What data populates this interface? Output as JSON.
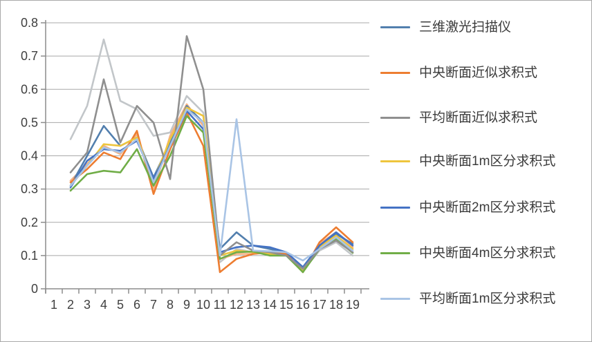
{
  "chart_data": {
    "type": "line",
    "title": "",
    "xlabel": "",
    "ylabel": "",
    "categories": [
      1,
      2,
      3,
      4,
      5,
      6,
      7,
      8,
      9,
      10,
      11,
      12,
      13,
      14,
      15,
      16,
      17,
      18,
      19
    ],
    "ylim": [
      0,
      0.8
    ],
    "y_tick_step": 0.1,
    "grid": true,
    "legend_position": "right",
    "y_tick_labels": [
      "0",
      "0.1",
      "0.2",
      "0.3",
      "0.4",
      "0.5",
      "0.6",
      "0.7",
      "0.8"
    ],
    "x_tick_labels": [
      "1",
      "2",
      "3",
      "4",
      "5",
      "6",
      "7",
      "8",
      "9",
      "10",
      "11",
      "12",
      "13",
      "14",
      "15",
      "16",
      "17",
      "18",
      "19"
    ],
    "series": [
      {
        "name": "三维激光扫描仪",
        "color": "#527fae",
        "in_legend": true,
        "values": [
          null,
          0.31,
          0.4,
          0.49,
          0.43,
          0.455,
          0.335,
          0.44,
          0.55,
          0.5,
          0.12,
          0.17,
          0.13,
          0.12,
          0.11,
          0.065,
          0.13,
          0.165,
          0.135
        ]
      },
      {
        "name": "中央断面近似求积式",
        "color": "#ed7d31",
        "in_legend": true,
        "values": [
          null,
          0.32,
          0.36,
          0.41,
          0.39,
          0.475,
          0.285,
          0.42,
          0.53,
          0.43,
          0.05,
          0.09,
          0.105,
          0.11,
          0.105,
          0.05,
          0.14,
          0.185,
          0.14
        ]
      },
      {
        "name": "平均断面近似求积式",
        "color": "#8f8f8f",
        "in_legend": true,
        "values": [
          null,
          0.35,
          0.41,
          0.63,
          0.44,
          0.55,
          0.5,
          0.33,
          0.76,
          0.6,
          0.1,
          0.14,
          0.115,
          0.11,
          0.1,
          0.06,
          0.12,
          0.145,
          0.11
        ]
      },
      {
        "name": "中央断面1m区分求积式",
        "color": "#eec53d",
        "in_legend": true,
        "values": [
          null,
          0.31,
          0.37,
          0.435,
          0.43,
          0.455,
          0.325,
          0.45,
          0.545,
          0.52,
          0.1,
          0.115,
          0.11,
          0.105,
          0.1,
          0.055,
          0.125,
          0.16,
          0.12
        ]
      },
      {
        "name": "中央断面2m区分求积式",
        "color": "#4472c4",
        "in_legend": true,
        "values": [
          null,
          0.305,
          0.385,
          0.42,
          0.415,
          0.445,
          0.33,
          0.43,
          0.535,
          0.48,
          0.11,
          0.125,
          0.13,
          0.125,
          0.11,
          0.065,
          0.13,
          0.17,
          0.13
        ]
      },
      {
        "name": "中央断面4m区分求积式",
        "color": "#70ad47",
        "in_legend": true,
        "values": [
          null,
          0.295,
          0.345,
          0.355,
          0.35,
          0.42,
          0.31,
          0.4,
          0.52,
          0.47,
          0.09,
          0.11,
          0.112,
          0.1,
          0.1,
          0.05,
          0.12,
          0.15,
          0.108
        ]
      },
      {
        "name": "平均断面1m区分求积式",
        "color": "#a9c4e5",
        "in_legend": true,
        "values": [
          null,
          0.31,
          0.37,
          0.425,
          0.41,
          0.45,
          0.32,
          0.43,
          0.54,
          0.5,
          0.1,
          0.51,
          0.115,
          0.113,
          0.11,
          0.085,
          0.12,
          0.155,
          0.115
        ]
      },
      {
        "name": "",
        "color": "#c2c6c9",
        "in_legend": false,
        "values": [
          null,
          0.45,
          0.55,
          0.75,
          0.565,
          0.54,
          0.46,
          0.47,
          0.58,
          0.53,
          0.08,
          0.12,
          0.11,
          0.105,
          0.1,
          0.055,
          0.115,
          0.14,
          0.1
        ]
      },
      {
        "name": "",
        "color": "#f4b183",
        "in_legend": false,
        "values": [
          null,
          0.325,
          0.375,
          0.43,
          0.405,
          0.465,
          0.295,
          0.46,
          0.555,
          0.49,
          0.09,
          0.105,
          0.105,
          0.11,
          0.106,
          0.05,
          0.135,
          0.17,
          0.125
        ]
      }
    ]
  },
  "legend": {
    "items": [
      {
        "label": "三维激光扫描仪",
        "color": "#527fae"
      },
      {
        "label": "中央断面近似求积式",
        "color": "#ed7d31"
      },
      {
        "label": "平均断面近似求积式",
        "color": "#8f8f8f"
      },
      {
        "label": "中央断面1m区分求积式",
        "color": "#eec53d"
      },
      {
        "label": "中央断面2m区分求积式",
        "color": "#4472c4"
      },
      {
        "label": "中央断面4m区分求积式",
        "color": "#70ad47"
      },
      {
        "label": "平均断面1m区分求积式",
        "color": "#a9c4e5"
      }
    ]
  },
  "colors": {
    "gridline": "#a8a8a8",
    "axis": "#8c8c8c",
    "tick_text": "#3f3f3f",
    "border": "#a9a9a9"
  }
}
